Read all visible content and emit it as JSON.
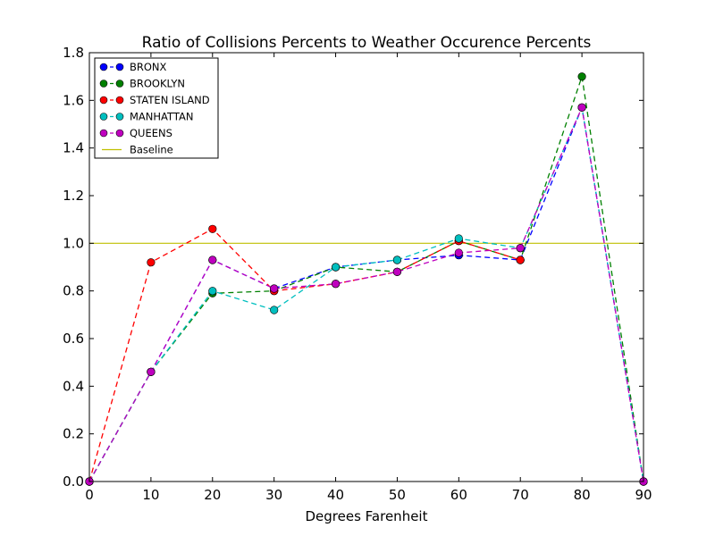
{
  "chart_data": {
    "type": "line",
    "title": "Ratio of Collisions Percents to Weather Occurence Percents",
    "xlabel": "Degrees Farenheit",
    "ylabel": "",
    "xlim": [
      0,
      90
    ],
    "ylim": [
      0.0,
      1.8
    ],
    "x_ticks": [
      "0",
      "10",
      "20",
      "30",
      "40",
      "50",
      "60",
      "70",
      "80",
      "90"
    ],
    "y_ticks": [
      "0.0",
      "0.2",
      "0.4",
      "0.6",
      "0.8",
      "1.0",
      "1.2",
      "1.4",
      "1.6",
      "1.8"
    ],
    "grid": false,
    "legend_position": "top-left",
    "series": [
      {
        "name": "BRONX",
        "color": "#0000ff",
        "linestyle": "dashed",
        "marker": "circle",
        "points": [
          [
            0,
            0.0
          ],
          [
            10,
            0.46
          ],
          [
            20,
            0.93
          ],
          [
            30,
            0.81
          ],
          [
            40,
            0.9
          ],
          [
            50,
            0.93
          ],
          [
            60,
            0.95
          ],
          [
            70,
            0.93
          ],
          [
            80,
            1.57
          ],
          [
            90,
            0.0
          ]
        ]
      },
      {
        "name": "BROOKLYN",
        "color": "#008000",
        "linestyle": "dashed",
        "marker": "circle",
        "points": [
          [
            0,
            0.0
          ],
          [
            10,
            0.46
          ],
          [
            20,
            0.79
          ],
          [
            30,
            0.8
          ],
          [
            40,
            0.9
          ],
          [
            50,
            0.88
          ],
          [
            60,
            1.01
          ],
          [
            70,
            0.93
          ],
          [
            80,
            1.7
          ],
          [
            90,
            0.0
          ]
        ]
      },
      {
        "name": "STATEN ISLAND",
        "color": "#ff0000",
        "linestyle": "dashed",
        "marker": "circle",
        "points": [
          [
            0,
            0.0
          ],
          [
            10,
            0.92
          ],
          [
            20,
            1.06
          ],
          [
            30,
            0.8
          ],
          [
            40,
            0.83
          ],
          [
            50,
            0.88
          ],
          [
            60,
            1.01
          ],
          [
            70,
            0.93
          ]
        ]
      },
      {
        "name": "MANHATTAN",
        "color": "#00bfbf",
        "linestyle": "dashed",
        "marker": "circle",
        "points": [
          [
            0,
            0.0
          ],
          [
            10,
            0.46
          ],
          [
            20,
            0.8
          ],
          [
            30,
            0.72
          ],
          [
            40,
            0.9
          ],
          [
            50,
            0.93
          ],
          [
            60,
            1.02
          ],
          [
            70,
            0.98
          ],
          [
            80,
            1.57
          ],
          [
            90,
            0.0
          ]
        ]
      },
      {
        "name": "QUEENS",
        "color": "#bf00bf",
        "linestyle": "dashed",
        "marker": "circle",
        "points": [
          [
            0,
            0.0
          ],
          [
            10,
            0.46
          ],
          [
            20,
            0.93
          ],
          [
            30,
            0.81
          ],
          [
            40,
            0.83
          ],
          [
            50,
            0.88
          ],
          [
            60,
            0.96
          ],
          [
            70,
            0.98
          ],
          [
            80,
            1.57
          ],
          [
            90,
            0.0
          ]
        ]
      }
    ],
    "baseline": {
      "name": "Baseline",
      "color": "#bfbf00",
      "y": 1.0
    }
  }
}
